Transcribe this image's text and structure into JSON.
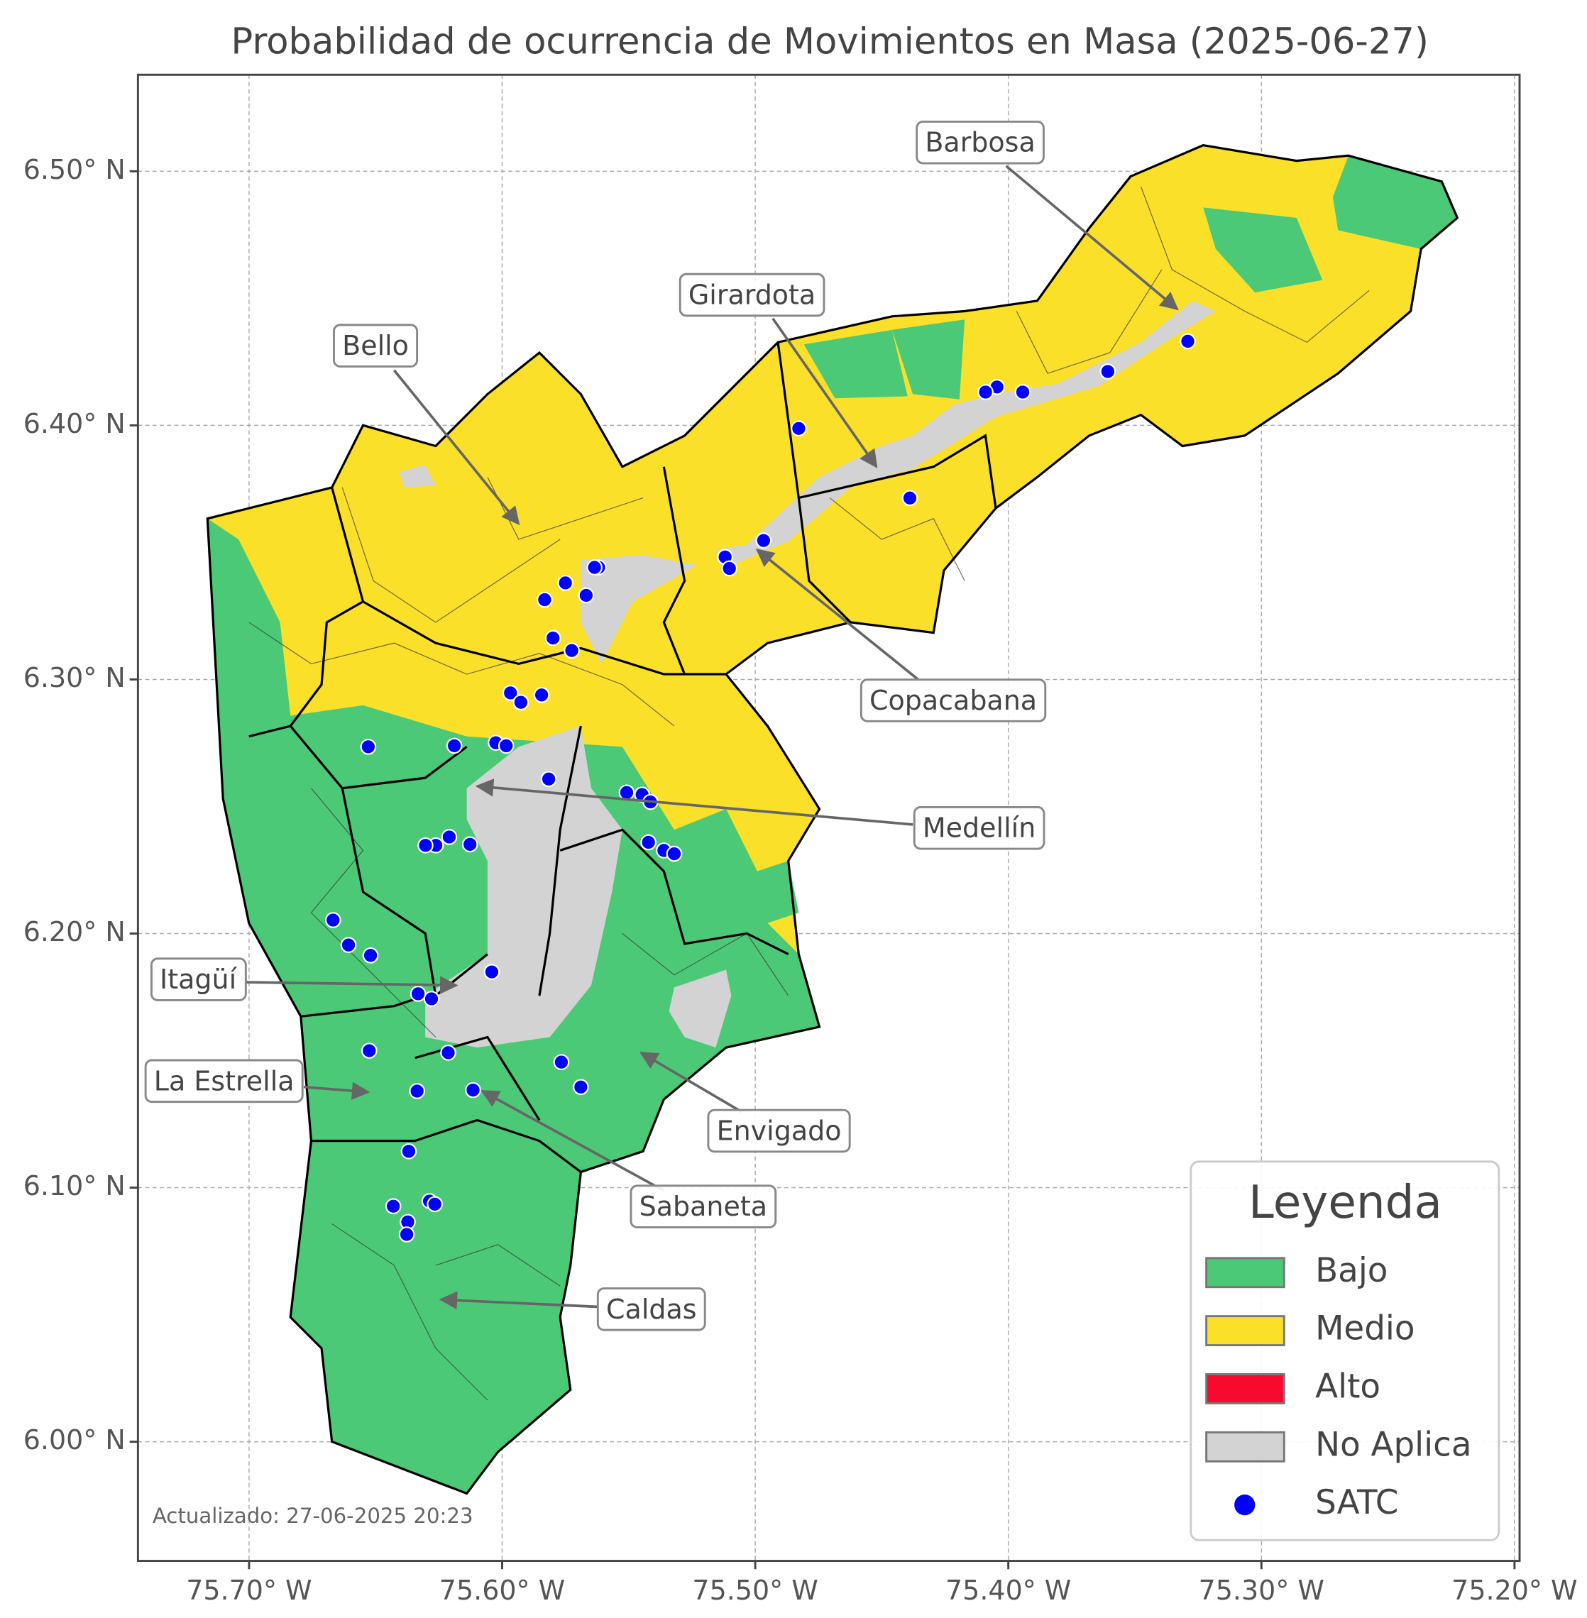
{
  "title": "Probabilidad de ocurrencia de Movimientos en Masa (2025-06-27)",
  "map": {
    "xlim": [
      -75.7439,
      -75.198
    ],
    "ylim": [
      5.9531,
      6.538
    ],
    "xticks": [
      {
        "value": -75.7,
        "label": "75.70° W"
      },
      {
        "value": -75.6,
        "label": "75.60° W"
      },
      {
        "value": -75.5,
        "label": "75.50° W"
      },
      {
        "value": -75.4,
        "label": "75.40° W"
      },
      {
        "value": -75.3,
        "label": "75.30° W"
      },
      {
        "value": -75.2,
        "label": "75.20° W"
      }
    ],
    "yticks": [
      {
        "value": 6.0,
        "label": "6.00° N"
      },
      {
        "value": 6.1,
        "label": "6.10° N"
      },
      {
        "value": 6.2,
        "label": "6.20° N"
      },
      {
        "value": 6.3,
        "label": "6.30° N"
      },
      {
        "value": 6.4,
        "label": "6.40° N"
      },
      {
        "value": 6.5,
        "label": "6.50° N"
      }
    ],
    "grid": true,
    "points": {
      "name": "SATC",
      "color": "#0000ff",
      "lon": [
        -75.3291,
        -75.3607,
        -75.3943,
        -75.4045,
        -75.409,
        -75.4828,
        -75.4389,
        -75.4967,
        -75.5119,
        -75.5102,
        -75.5619,
        -75.5635,
        -75.575,
        -75.5668,
        -75.5832,
        -75.5799,
        -75.5725,
        -75.5967,
        -75.5926,
        -75.5844,
        -75.6529,
        -75.6189,
        -75.6025,
        -75.5984,
        -75.5816,
        -75.5508,
        -75.5447,
        -75.5414,
        -75.5422,
        -75.5361,
        -75.532,
        -75.6209,
        -75.6262,
        -75.6303,
        -75.6127,
        -75.6668,
        -75.6607,
        -75.652,
        -75.6041,
        -75.6332,
        -75.6279,
        -75.6525,
        -75.6213,
        -75.5766,
        -75.5689,
        -75.6336,
        -75.6115,
        -75.6369,
        -75.643,
        -75.6287,
        -75.6266,
        -75.6373,
        -75.6377
      ],
      "lat": [
        6.4331,
        6.4212,
        6.4131,
        6.4151,
        6.4131,
        6.3988,
        6.3714,
        6.3547,
        6.3482,
        6.3437,
        6.3441,
        6.3441,
        6.338,
        6.3331,
        6.3314,
        6.3163,
        6.3114,
        6.2947,
        6.291,
        6.2939,
        6.2735,
        6.2739,
        6.2751,
        6.2739,
        6.2608,
        6.2555,
        6.2547,
        6.2518,
        6.2359,
        6.2327,
        6.2314,
        6.238,
        6.2347,
        6.2347,
        6.2351,
        6.2053,
        6.1955,
        6.1914,
        6.1849,
        6.1763,
        6.1743,
        6.1539,
        6.1531,
        6.1494,
        6.1396,
        6.138,
        6.1384,
        6.1143,
        6.0927,
        6.0947,
        6.0935,
        6.0865,
        6.0816
      ]
    }
  },
  "annotations": [
    "Barbosa",
    "Girardota",
    "Bello",
    "Copacabana",
    "Medellín",
    "Itagüí",
    "La Estrella",
    "Envigado",
    "Sabaneta",
    "Caldas"
  ],
  "legend": {
    "title": "Leyenda",
    "items": [
      {
        "label": "Bajo",
        "color": "#4cc976"
      },
      {
        "label": "Medio",
        "color": "#fbe02a"
      },
      {
        "label": "Alto",
        "color": "#f70a2d"
      },
      {
        "label": "No Aplica",
        "color": "#d3d3d3"
      }
    ]
  },
  "footer": "Actualizado: 27-06-2025 20:23"
}
